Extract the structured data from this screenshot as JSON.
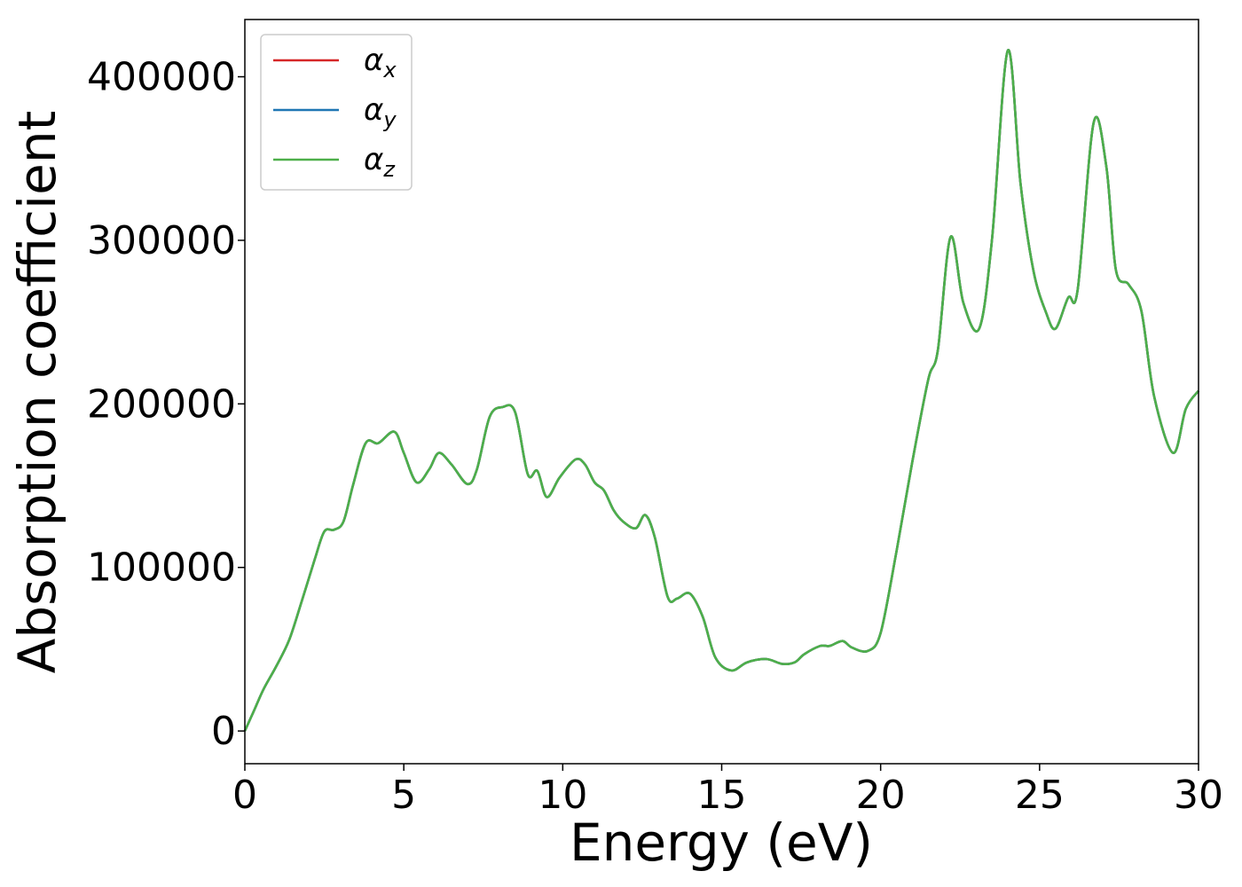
{
  "chart_data": {
    "type": "line",
    "xlabel": "Energy (eV)",
    "ylabel": "Absorption coefficient",
    "xlim": [
      0,
      30
    ],
    "ylim": [
      -20000,
      435000
    ],
    "xticks": [
      0,
      5,
      10,
      15,
      20,
      25,
      30
    ],
    "xtick_labels": [
      "0",
      "5",
      "10",
      "15",
      "20",
      "25",
      "30"
    ],
    "yticks": [
      0,
      100000,
      200000,
      300000,
      400000
    ],
    "ytick_labels": [
      "0",
      "100000",
      "200000",
      "300000",
      "400000"
    ],
    "grid": false,
    "legend_position": "top-left",
    "x": [
      0,
      0.3,
      0.6,
      1.0,
      1.4,
      1.8,
      2.2,
      2.5,
      2.8,
      3.1,
      3.4,
      3.8,
      4.2,
      4.7,
      5.0,
      5.4,
      5.8,
      6.1,
      6.5,
      7.0,
      7.3,
      7.7,
      8.1,
      8.5,
      8.9,
      9.2,
      9.5,
      9.9,
      10.4,
      10.7,
      11.0,
      11.3,
      11.6,
      11.9,
      12.3,
      12.6,
      12.9,
      13.3,
      13.6,
      14.0,
      14.4,
      14.8,
      15.3,
      15.8,
      16.4,
      16.9,
      17.3,
      17.6,
      18.1,
      18.4,
      18.8,
      19.1,
      19.6,
      20.0,
      20.5,
      21.0,
      21.5,
      21.8,
      22.2,
      22.6,
      23.1,
      23.5,
      24.0,
      24.4,
      24.8,
      25.2,
      25.5,
      25.9,
      26.2,
      26.7,
      27.1,
      27.4,
      27.8,
      28.2,
      28.6,
      29.2,
      29.6,
      30.0
    ],
    "series": [
      {
        "name": "αx",
        "color": "#d62728",
        "values": [
          0,
          13000,
          26000,
          40000,
          56000,
          80000,
          105000,
          122000,
          123000,
          128000,
          150000,
          176000,
          176000,
          183000,
          170000,
          152000,
          160000,
          170000,
          163000,
          151000,
          160000,
          192000,
          198000,
          195000,
          157000,
          159000,
          143000,
          155000,
          166000,
          163000,
          152000,
          147000,
          135000,
          128000,
          124000,
          132000,
          118000,
          82000,
          81000,
          84000,
          70000,
          45000,
          37000,
          42000,
          44000,
          41000,
          42000,
          47000,
          52000,
          52000,
          55000,
          51000,
          49000,
          60000,
          110000,
          165000,
          215000,
          233000,
          302000,
          262000,
          246000,
          300000,
          416000,
          335000,
          282000,
          256000,
          246000,
          265000,
          270000,
          372000,
          345000,
          282000,
          273000,
          257000,
          205000,
          170000,
          197000,
          208000
        ]
      },
      {
        "name": "αy",
        "color": "#1f77b4",
        "values": [
          0,
          13000,
          26000,
          40000,
          56000,
          80000,
          105000,
          122000,
          123000,
          128000,
          150000,
          176000,
          176000,
          183000,
          170000,
          152000,
          160000,
          170000,
          163000,
          151000,
          160000,
          192000,
          198000,
          195000,
          157000,
          159000,
          143000,
          155000,
          166000,
          163000,
          152000,
          147000,
          135000,
          128000,
          124000,
          132000,
          118000,
          82000,
          81000,
          84000,
          70000,
          45000,
          37000,
          42000,
          44000,
          41000,
          42000,
          47000,
          52000,
          52000,
          55000,
          51000,
          49000,
          60000,
          110000,
          165000,
          215000,
          233000,
          302000,
          262000,
          246000,
          300000,
          416000,
          335000,
          282000,
          256000,
          246000,
          265000,
          270000,
          372000,
          345000,
          282000,
          273000,
          257000,
          205000,
          170000,
          197000,
          208000
        ]
      },
      {
        "name": "αz",
        "color": "#4daf4a",
        "values": [
          0,
          13000,
          26000,
          40000,
          56000,
          80000,
          105000,
          122000,
          123000,
          128000,
          150000,
          176000,
          176000,
          183000,
          170000,
          152000,
          160000,
          170000,
          163000,
          151000,
          160000,
          192000,
          198000,
          195000,
          157000,
          159000,
          143000,
          155000,
          166000,
          163000,
          152000,
          147000,
          135000,
          128000,
          124000,
          132000,
          118000,
          82000,
          81000,
          84000,
          70000,
          45000,
          37000,
          42000,
          44000,
          41000,
          42000,
          47000,
          52000,
          52000,
          55000,
          51000,
          49000,
          60000,
          110000,
          165000,
          215000,
          233000,
          302000,
          262000,
          246000,
          300000,
          416000,
          335000,
          282000,
          256000,
          246000,
          265000,
          270000,
          372000,
          345000,
          282000,
          273000,
          257000,
          205000,
          170000,
          197000,
          208000
        ]
      }
    ],
    "legend": [
      {
        "symbol": "α",
        "sub": "x",
        "color": "#d62728"
      },
      {
        "symbol": "α",
        "sub": "y",
        "color": "#1f77b4"
      },
      {
        "symbol": "α",
        "sub": "z",
        "color": "#4daf4a"
      }
    ]
  }
}
